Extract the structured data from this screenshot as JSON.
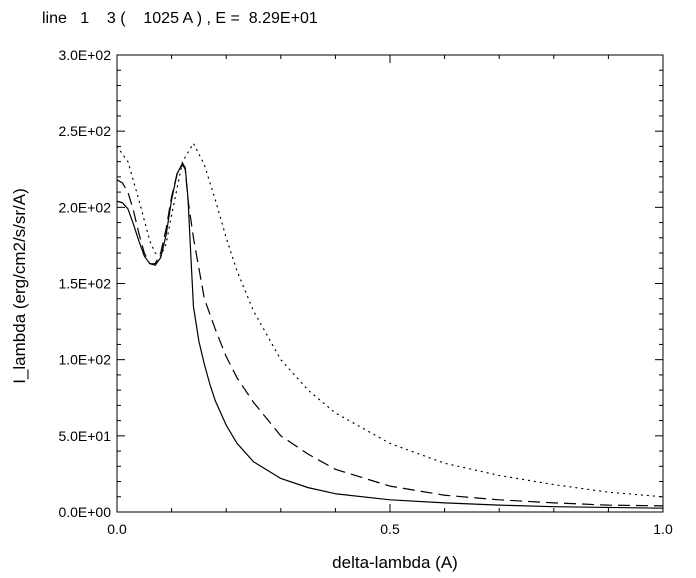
{
  "chart_data": {
    "type": "line",
    "title": "line   1    3 (    1025 A ) , E =  8.29E+01",
    "xlabel": "delta-lambda (A)",
    "ylabel": "I_lambda (erg/cm2/s/sr/A)",
    "xlim": [
      0.0,
      1.0
    ],
    "ylim": [
      0,
      300
    ],
    "xticks": [
      0.0,
      0.5,
      1.0
    ],
    "xtick_labels": [
      "0.0",
      "0.5",
      "1.0"
    ],
    "yticks": [
      0,
      50,
      100,
      150,
      200,
      250,
      300
    ],
    "ytick_labels": [
      "0.0E+00",
      "5.0E+01",
      "1.0E+02",
      "1.5E+02",
      "2.0E+02",
      "2.5E+02",
      "3.0E+02"
    ],
    "grid": false,
    "legend": "none",
    "series": [
      {
        "style": "solid",
        "x": [
          0.0,
          0.01,
          0.02,
          0.03,
          0.04,
          0.05,
          0.06,
          0.07,
          0.08,
          0.09,
          0.1,
          0.11,
          0.12,
          0.125,
          0.13,
          0.135,
          0.14,
          0.15,
          0.16,
          0.17,
          0.18,
          0.2,
          0.22,
          0.25,
          0.3,
          0.35,
          0.4,
          0.5,
          0.6,
          0.7,
          0.8,
          0.9,
          1.0
        ],
        "y": [
          204,
          203,
          199,
          189,
          178,
          168,
          163,
          162,
          167,
          182,
          205,
          222,
          229,
          226,
          206,
          170,
          135,
          112,
          97,
          84,
          73,
          57,
          45,
          33,
          22,
          16,
          12,
          8,
          6,
          4.5,
          3.5,
          3,
          2.5
        ]
      },
      {
        "style": "dashed",
        "x": [
          0.0,
          0.01,
          0.02,
          0.03,
          0.04,
          0.05,
          0.06,
          0.07,
          0.08,
          0.09,
          0.1,
          0.11,
          0.12,
          0.125,
          0.13,
          0.14,
          0.15,
          0.16,
          0.18,
          0.2,
          0.22,
          0.25,
          0.3,
          0.35,
          0.4,
          0.5,
          0.6,
          0.7,
          0.8,
          0.9,
          1.0
        ],
        "y": [
          218,
          216,
          210,
          198,
          183,
          170,
          163,
          163,
          170,
          186,
          207,
          222,
          228,
          225,
          205,
          180,
          160,
          140,
          120,
          102,
          88,
          72,
          50,
          38,
          28,
          17,
          11,
          8,
          6,
          4.5,
          4
        ]
      },
      {
        "style": "dotted",
        "x": [
          0.0,
          0.02,
          0.04,
          0.06,
          0.07,
          0.08,
          0.09,
          0.1,
          0.12,
          0.14,
          0.16,
          0.18,
          0.2,
          0.22,
          0.25,
          0.3,
          0.35,
          0.4,
          0.5,
          0.6,
          0.7,
          0.8,
          0.9,
          1.0
        ],
        "y": [
          240,
          230,
          205,
          178,
          170,
          168,
          176,
          195,
          230,
          242,
          228,
          205,
          180,
          158,
          132,
          100,
          80,
          65,
          45,
          32,
          24,
          18,
          13,
          10
        ]
      }
    ]
  }
}
